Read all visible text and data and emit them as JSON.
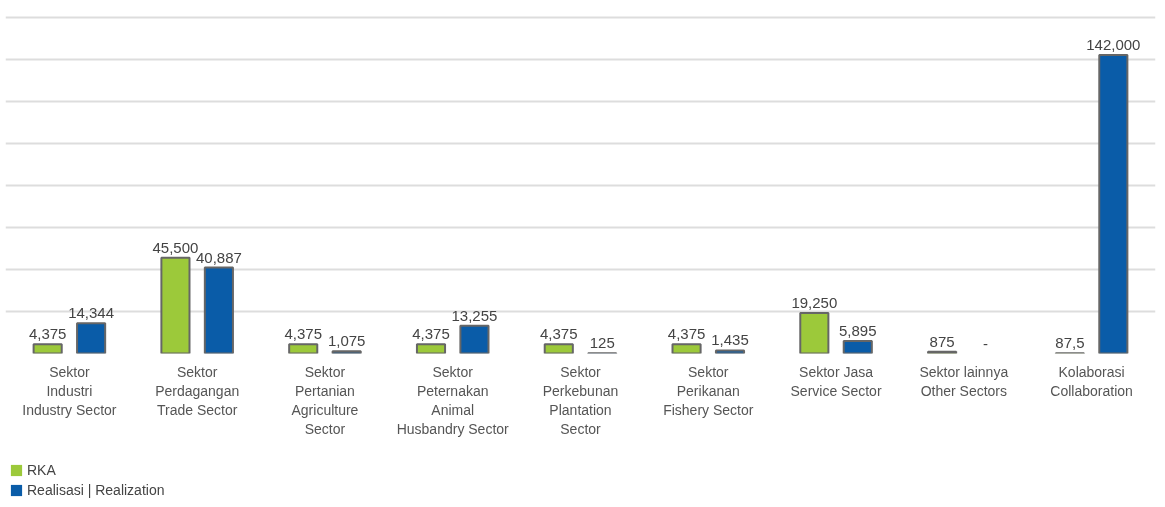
{
  "chart_data": {
    "type": "bar",
    "categories": [
      "Sektor\nIndustri\n\nIndustry Sector",
      "Sektor\nPerdagangan\n\nTrade Sector",
      "Sektor\nPertanian\n\nAgriculture\nSector",
      "Sektor\nPeternakan\n\nAnimal\nHusbandry Sector",
      "Sektor\nPerkebunan\n\nPlantation\nSector",
      "Sektor\nPerikanan\n\nFishery Sector",
      "Sektor Jasa\n\nService Sector",
      "Sektor lainnya\n\nOther Sectors",
      "Kolaborasi\n\nCollaboration"
    ],
    "series": [
      {
        "name": "RKA",
        "color": "#9cc93a",
        "values": [
          4375,
          45500,
          4375,
          4375,
          4375,
          4375,
          19250,
          875,
          87.5
        ],
        "value_labels": [
          "4,375",
          "45,500",
          "4,375",
          "4,375",
          "4,375",
          "4,375",
          "19,250",
          "875",
          "87,5"
        ]
      },
      {
        "name": "Realisasi | Realization",
        "color": "#0a5ca8",
        "values": [
          14344,
          40887,
          1075,
          13255,
          125,
          1435,
          5895,
          null,
          142000
        ],
        "value_labels": [
          "14,344",
          "40,887",
          "1,075",
          "13,255",
          "125",
          "1,435",
          "5,895",
          "-",
          "142,000"
        ]
      }
    ],
    "yticks": [
      {
        "value": 20000,
        "label": null
      },
      {
        "value": 40000,
        "label": null
      },
      {
        "value": 60000,
        "label": null
      },
      {
        "value": 80000,
        "label": null
      },
      {
        "value": 100000,
        "label": null
      },
      {
        "value": 120000,
        "label": null
      },
      {
        "value": 140000,
        "label": null
      },
      {
        "value": 160000,
        "label": null
      }
    ],
    "grid": "y",
    "tick_labels": "x",
    "legend": "bottom left"
  }
}
